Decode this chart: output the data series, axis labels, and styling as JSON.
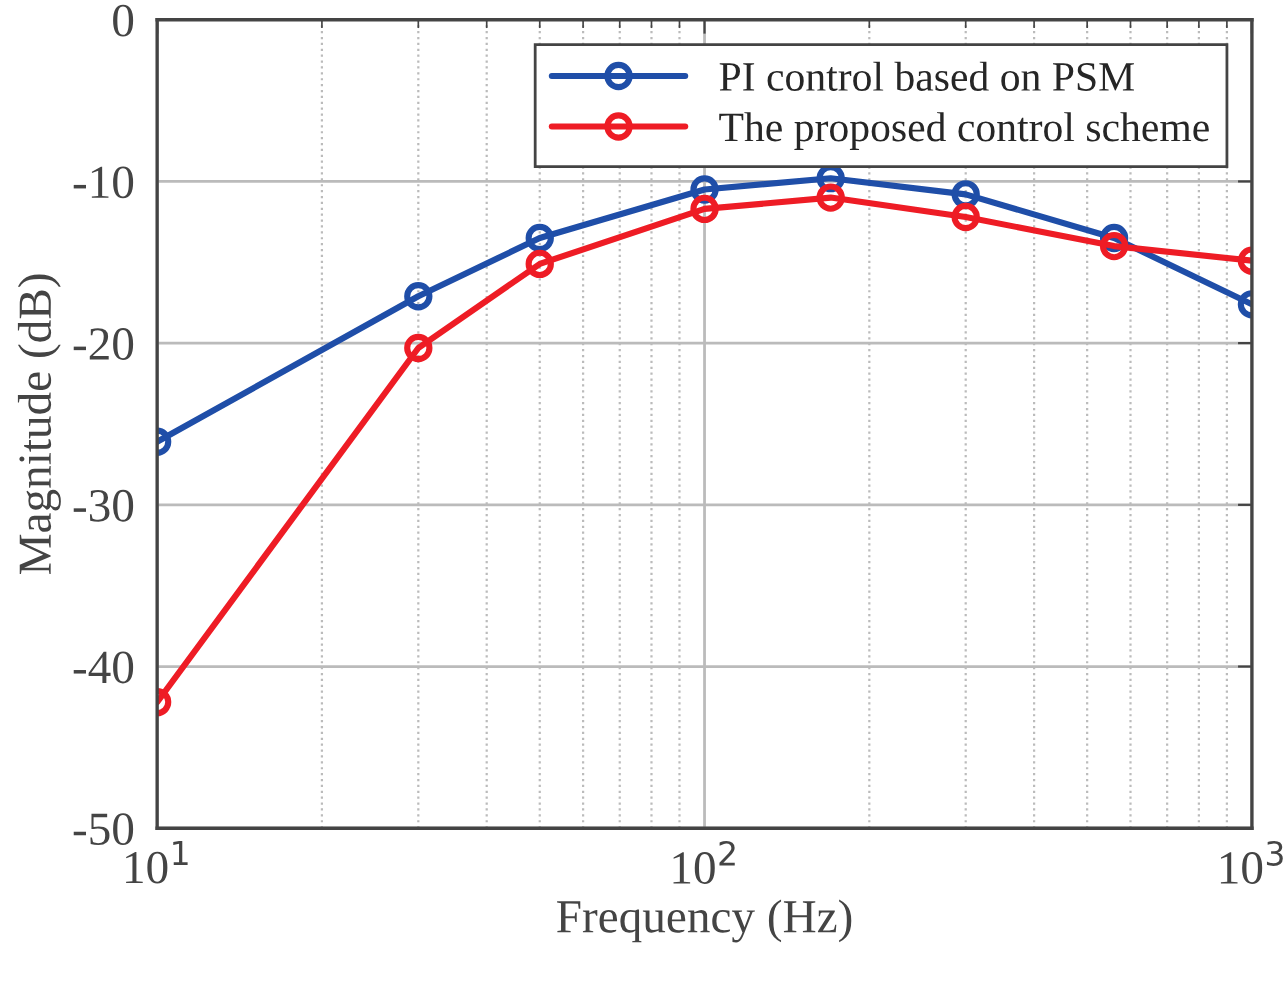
{
  "chart_data": {
    "type": "line",
    "xlabel": "Frequency (Hz)",
    "ylabel": "Magnitude (dB)",
    "x": [
      10,
      30,
      50,
      100,
      170,
      300,
      560,
      1000
    ],
    "series": [
      {
        "name": "PI control based on PSM",
        "color": "#1f4ea8",
        "values": [
          -26.1,
          -17.1,
          -13.5,
          -10.5,
          -9.8,
          -10.8,
          -13.5,
          -17.6
        ]
      },
      {
        "name": "The proposed control scheme",
        "color": "#ee1c25",
        "values": [
          -42.2,
          -20.3,
          -15.1,
          -11.7,
          -11.0,
          -12.2,
          -14.0,
          -14.9
        ]
      }
    ],
    "log": "x",
    "xlim": [
      10,
      1000
    ],
    "ylim": [
      -50,
      0
    ],
    "xticks": [
      {
        "value": 10,
        "label": "10$^{1}$"
      },
      {
        "value": 100,
        "label": "10$^{2}$"
      },
      {
        "value": 1000,
        "label": "10$^{3}$"
      }
    ],
    "yticks": [
      -50,
      -40,
      -30,
      -20,
      -10,
      0
    ],
    "grid": true,
    "legend": "top right",
    "marker": "circle",
    "line_style": "solid"
  }
}
